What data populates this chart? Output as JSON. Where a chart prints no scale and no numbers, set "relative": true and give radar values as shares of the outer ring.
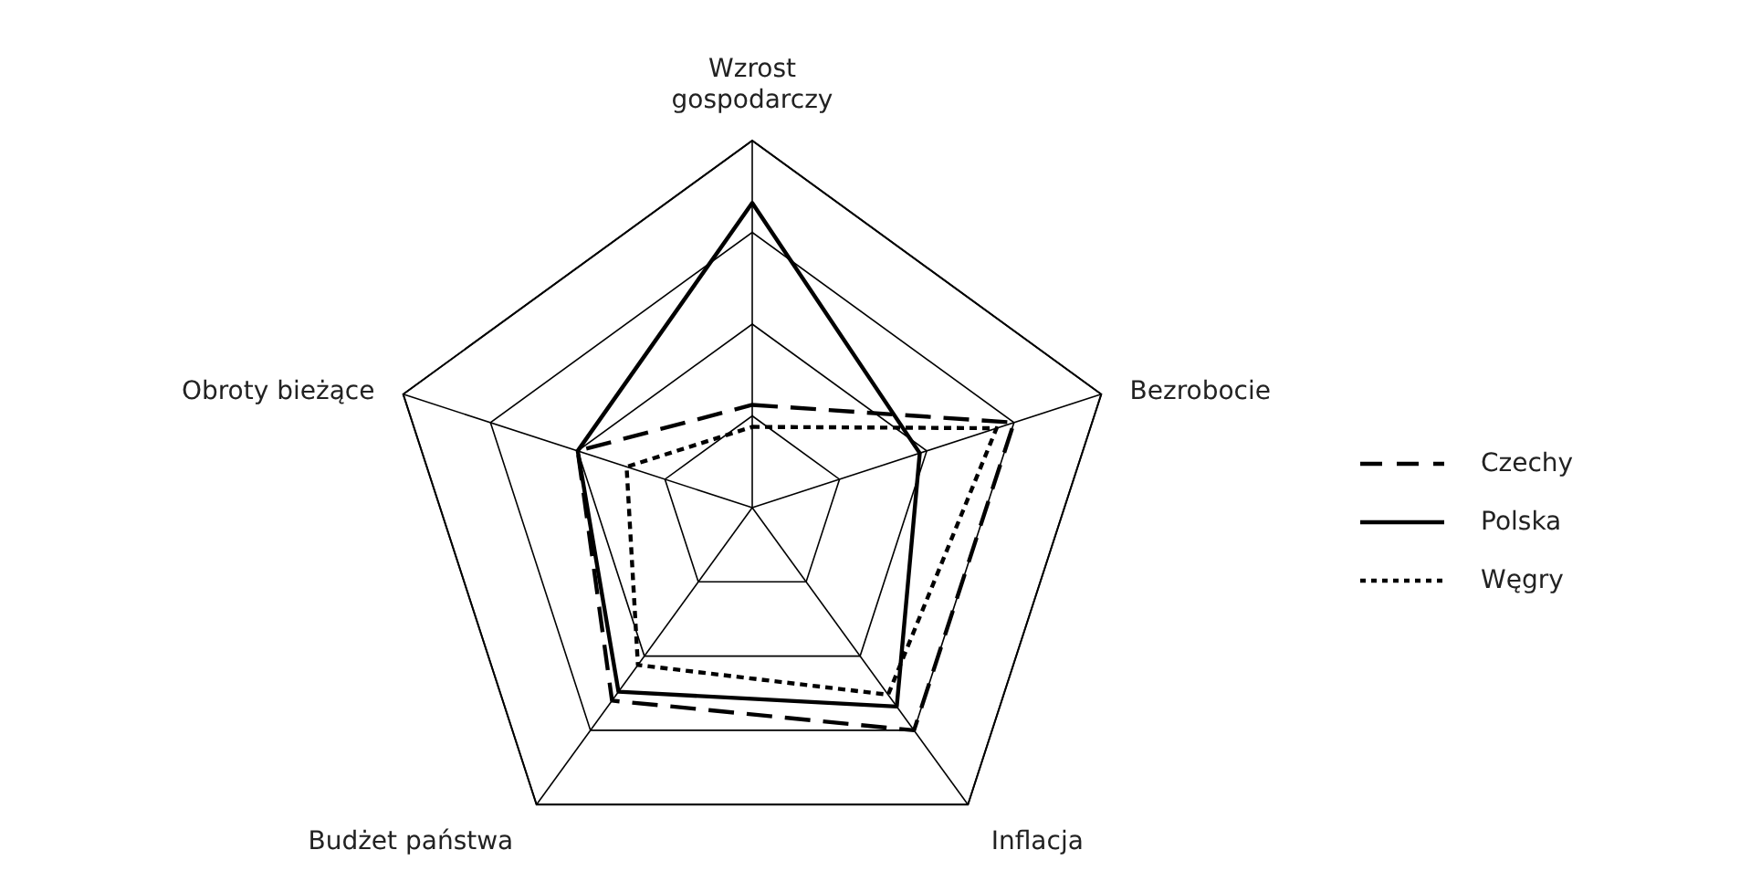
{
  "chart_data": {
    "type": "radar",
    "relative": true,
    "grid": true,
    "legend": "right",
    "categories": [
      "Wzrost gospodarczy",
      "Bezrobocie",
      "Inflacja",
      "Budżet państwa",
      "Obroty bieżące"
    ],
    "series": [
      {
        "name": "Czechy",
        "color": "#000000",
        "line_style": "dashed",
        "values": [
          0.28,
          0.75,
          0.75,
          0.65,
          0.5
        ]
      },
      {
        "name": "Polska",
        "color": "#000000",
        "line_style": "solid",
        "values": [
          0.83,
          0.48,
          0.67,
          0.62,
          0.5
        ]
      },
      {
        "name": "Węgry",
        "color": "#000000",
        "line_style": "dotted",
        "values": [
          0.22,
          0.7,
          0.63,
          0.53,
          0.36
        ]
      }
    ]
  }
}
